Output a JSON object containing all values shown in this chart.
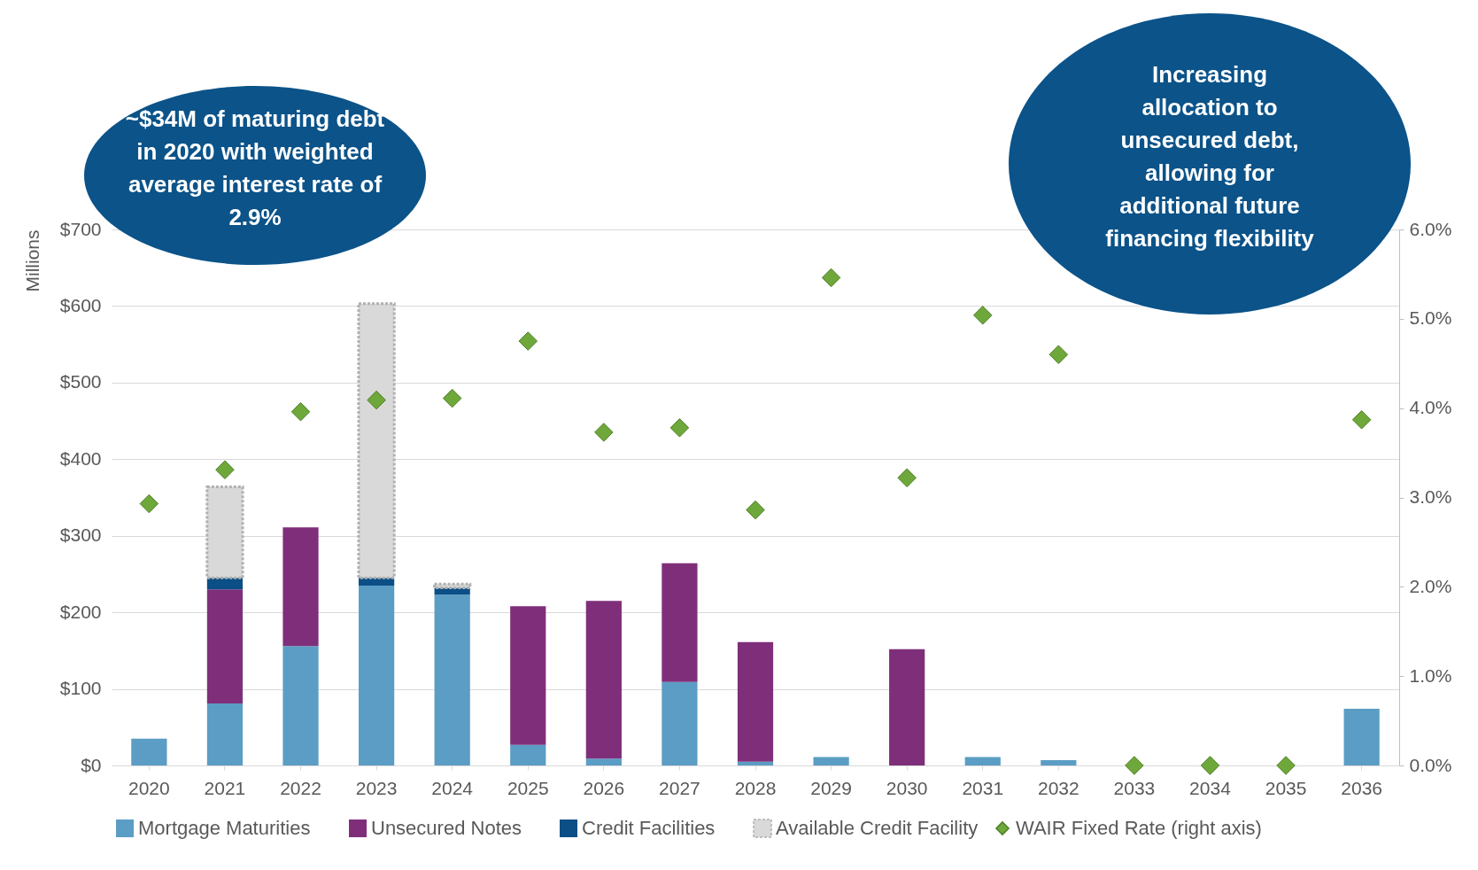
{
  "chart_data": {
    "type": "bar",
    "stacked": true,
    "ylabel": "Millions",
    "categories": [
      "2020",
      "2021",
      "2022",
      "2023",
      "2024",
      "2025",
      "2026",
      "2027",
      "2028",
      "2029",
      "2030",
      "2031",
      "2032",
      "2033",
      "2034",
      "2035",
      "2036"
    ],
    "series": [
      {
        "name": "Mortgage Maturities",
        "color": "#5b9dc4",
        "values": [
          35,
          81,
          156,
          235,
          223,
          27,
          9,
          109,
          5,
          11,
          null,
          11,
          7,
          null,
          null,
          null,
          74
        ]
      },
      {
        "name": "Unsecured Notes",
        "color": "#7f2f7a",
        "values": [
          null,
          149,
          155,
          null,
          null,
          181,
          206,
          155,
          156,
          null,
          152,
          null,
          null,
          null,
          null,
          null,
          null
        ]
      },
      {
        "name": "Credit Facilities",
        "color": "#0b4f86",
        "values": [
          null,
          15,
          null,
          10,
          9,
          null,
          null,
          null,
          null,
          null,
          null,
          null,
          null,
          null,
          null,
          null,
          null
        ]
      },
      {
        "name": "Available Credit Facility",
        "color": "#d9d9d9",
        "line_style": "dotted",
        "values": [
          null,
          119,
          null,
          358,
          5,
          null,
          null,
          null,
          null,
          null,
          null,
          null,
          null,
          null,
          null,
          null,
          null
        ]
      },
      {
        "name": "WAIR Fixed Rate (right axis)",
        "type": "scatter",
        "axis": "y2",
        "marker": "diamond",
        "color": "#6fa83a",
        "values": [
          2.93,
          3.31,
          3.96,
          4.09,
          4.11,
          4.75,
          3.73,
          3.78,
          2.86,
          5.46,
          3.22,
          5.04,
          4.6,
          0,
          0,
          0,
          3.87
        ]
      }
    ],
    "ylim": [
      0,
      700
    ],
    "yticks": [
      {
        "value": 0,
        "label": "$0"
      },
      {
        "value": 100,
        "label": "$100"
      },
      {
        "value": 200,
        "label": "$200"
      },
      {
        "value": 300,
        "label": "$300"
      },
      {
        "value": 400,
        "label": "$400"
      },
      {
        "value": 500,
        "label": "$500"
      },
      {
        "value": 600,
        "label": "$600"
      },
      {
        "value": 700,
        "label": "$700"
      }
    ],
    "y2lim": [
      0,
      6
    ],
    "y2ticks": [
      {
        "value": 0,
        "label": "0.0%"
      },
      {
        "value": 1,
        "label": "1.0%"
      },
      {
        "value": 2,
        "label": "2.0%"
      },
      {
        "value": 3,
        "label": "3.0%"
      },
      {
        "value": 4,
        "label": "4.0%"
      },
      {
        "value": 5,
        "label": "5.0%"
      },
      {
        "value": 6,
        "label": "6.0%"
      }
    ],
    "grid": "y",
    "legend": "bottom",
    "annotations": [
      "~$34M of maturing debt\nin 2020 with weighted\naverage interest rate of\n2.9%",
      "Increasing\nallocation to\nunsecured debt,\nallowing for\nadditional future\nfinancing flexibility"
    ]
  }
}
